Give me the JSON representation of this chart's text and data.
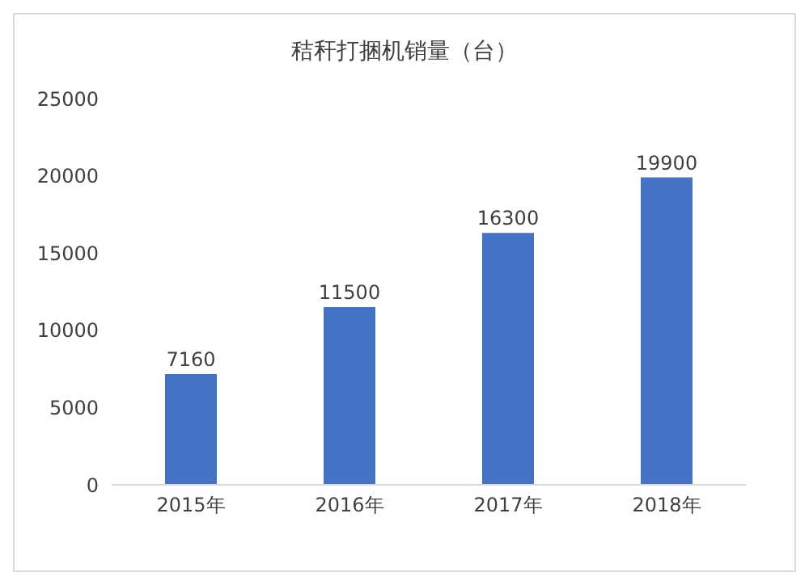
{
  "chart_data": {
    "type": "bar",
    "title": "秸秆打捆机销量（台）",
    "categories": [
      "2015年",
      "2016年",
      "2017年",
      "2018年"
    ],
    "values": [
      7160,
      11500,
      16300,
      19900
    ],
    "color": "#4472c4",
    "ylim": [
      0,
      25000
    ],
    "yticks": [
      0,
      5000,
      10000,
      15000,
      20000,
      25000
    ],
    "grid": false,
    "data_labels": true
  }
}
